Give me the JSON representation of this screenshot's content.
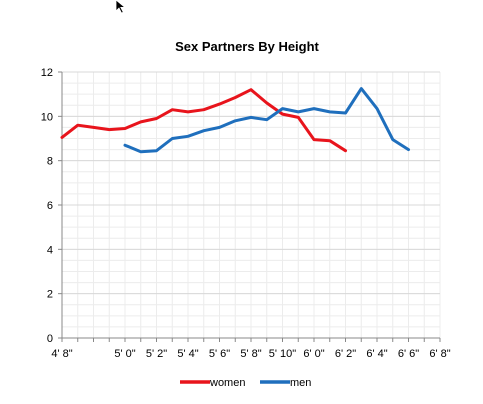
{
  "chart_data": {
    "type": "line",
    "title": "Sex Partners By Height",
    "xlabel": "",
    "ylabel": "",
    "x": [
      "4' 8\"",
      "4' 9\"",
      "4' 10\"",
      "4' 11\"",
      "5' 0\"",
      "5' 1\"",
      "5' 2\"",
      "5' 3\"",
      "5' 4\"",
      "5' 5\"",
      "5' 6\"",
      "5' 7\"",
      "5' 8\"",
      "5' 9\"",
      "5' 10\"",
      "5' 11\"",
      "6' 0\"",
      "6' 1\"",
      "6' 2\"",
      "6' 3\"",
      "6' 4\"",
      "6' 5\"",
      "6' 6\"",
      "6' 7\"",
      "6' 8\""
    ],
    "x_tick_labels": [
      "4' 8\"",
      "5' 0\"",
      "5' 2\"",
      "5' 4\"",
      "5' 6\"",
      "5' 8\"",
      "5' 10\"",
      "6' 0\"",
      "6' 2\"",
      "6' 4\"",
      "6' 6\"",
      "6' 8\""
    ],
    "y_ticks": [
      0,
      2,
      4,
      6,
      8,
      10,
      12
    ],
    "ylim": [
      0,
      12
    ],
    "grid": true,
    "legend_position": "bottom",
    "series": [
      {
        "name": "women",
        "color": "#e8141c",
        "values": [
          9.05,
          9.6,
          9.5,
          9.4,
          9.45,
          9.75,
          9.9,
          10.3,
          10.2,
          10.3,
          10.55,
          10.85,
          11.2,
          10.6,
          10.1,
          9.95,
          8.95,
          8.9,
          8.45,
          null,
          null,
          null,
          null,
          null,
          null
        ]
      },
      {
        "name": "men",
        "color": "#1f6fbd",
        "values": [
          null,
          null,
          null,
          null,
          8.7,
          8.4,
          8.45,
          9.0,
          9.1,
          9.35,
          9.5,
          9.8,
          9.95,
          9.85,
          10.35,
          10.2,
          10.35,
          10.2,
          10.15,
          11.25,
          10.35,
          8.95,
          8.5,
          null,
          null
        ]
      }
    ]
  }
}
